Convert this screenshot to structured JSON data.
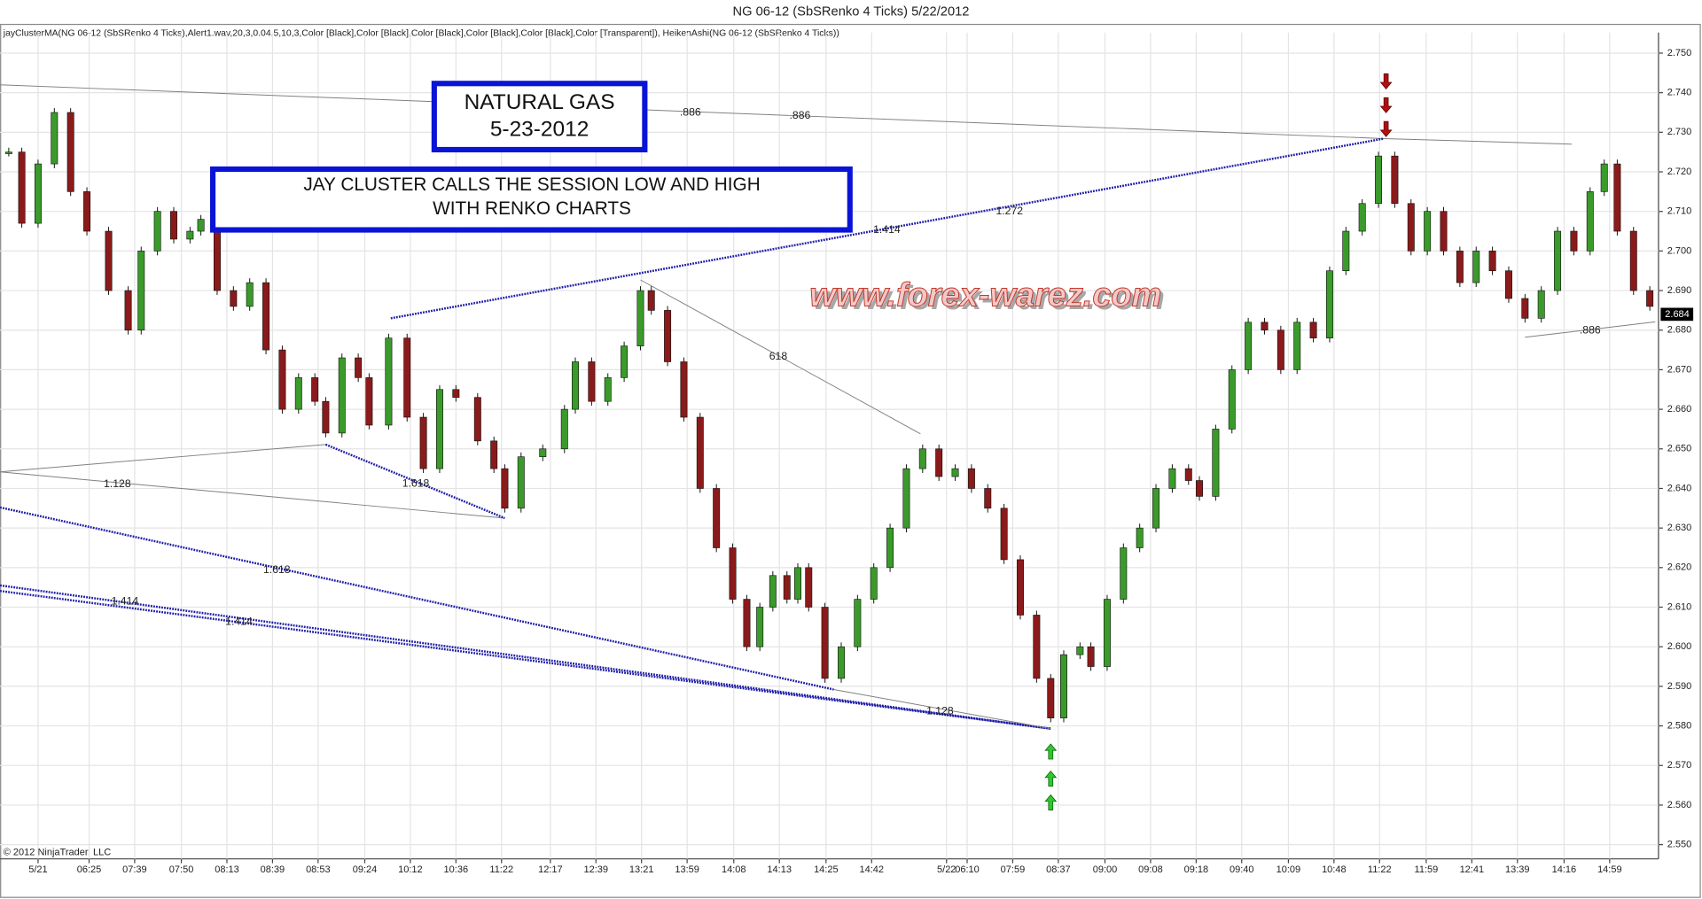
{
  "chart_data": {
    "type": "candlestick",
    "title": "NG 06-12 (SbSRenko 4 Ticks)  5/22/2012",
    "subtitle": "jayClusterMA(NG 06-12 (SbSRenko 4 Ticks),Alert1.wav,20,3,0.04,5,10,3,Color [Black],Color [Black],Color [Black],Color [Black],Color [Black],Color [Transparent]), HeikenAshi(NG 06-12 (SbSRenko 4 Ticks))",
    "footer": "© 2012 NinjaTrader, LLC",
    "watermark": "www.forex-warez.com",
    "text_boxes": [
      {
        "lines": [
          "NATURAL GAS",
          "5-23-2012"
        ]
      },
      {
        "lines": [
          "JAY CLUSTER CALLS THE SESSION LOW AND HIGH",
          "WITH RENKO CHARTS"
        ]
      }
    ],
    "up_color": "#3a9a2a",
    "down_color": "#8b1a1a",
    "grid": true,
    "xlim": [
      0,
      152.8
    ],
    "ylim": [
      2.5464,
      2.7552
    ],
    "xticks": [
      {
        "value": 3.5,
        "label": "5/21"
      },
      {
        "value": 8.2,
        "label": "06:25"
      },
      {
        "value": 12.4,
        "label": "07:39"
      },
      {
        "value": 16.7,
        "label": "07:50"
      },
      {
        "value": 20.9,
        "label": "08:13"
      },
      {
        "value": 25.1,
        "label": "08:39"
      },
      {
        "value": 29.3,
        "label": "08:53"
      },
      {
        "value": 33.6,
        "label": "09:24"
      },
      {
        "value": 37.8,
        "label": "10:12"
      },
      {
        "value": 42,
        "label": "10:36"
      },
      {
        "value": 46.2,
        "label": "11:22"
      },
      {
        "value": 50.7,
        "label": "12:17"
      },
      {
        "value": 54.9,
        "label": "12:39"
      },
      {
        "value": 59.1,
        "label": "13:21"
      },
      {
        "value": 63.3,
        "label": "13:59"
      },
      {
        "value": 67.6,
        "label": "14:08"
      },
      {
        "value": 71.8,
        "label": "14:13"
      },
      {
        "value": 76.1,
        "label": "14:25"
      },
      {
        "value": 80.3,
        "label": "14:42"
      },
      {
        "value": 87.2,
        "label": "5/22"
      },
      {
        "value": 89.1,
        "label": "06:10"
      },
      {
        "value": 93.3,
        "label": "07:59"
      },
      {
        "value": 97.5,
        "label": "08:37"
      },
      {
        "value": 101.8,
        "label": "09:00"
      },
      {
        "value": 106,
        "label": "09:08"
      },
      {
        "value": 110.2,
        "label": "09:18"
      },
      {
        "value": 114.4,
        "label": "09:40"
      },
      {
        "value": 118.7,
        "label": "10:09"
      },
      {
        "value": 122.9,
        "label": "10:48"
      },
      {
        "value": 127.1,
        "label": "11:22"
      },
      {
        "value": 131.4,
        "label": "11:59"
      },
      {
        "value": 135.6,
        "label": "12:41"
      },
      {
        "value": 139.8,
        "label": "13:39"
      },
      {
        "value": 144.1,
        "label": "14:16"
      },
      {
        "value": 148.3,
        "label": "14:59"
      }
    ],
    "yticks": [
      {
        "value": 2.55,
        "label": "2.550"
      },
      {
        "value": 2.56,
        "label": "2.560"
      },
      {
        "value": 2.57,
        "label": "2.570"
      },
      {
        "value": 2.58,
        "label": "2.580"
      },
      {
        "value": 2.59,
        "label": "2.590"
      },
      {
        "value": 2.6,
        "label": "2.600"
      },
      {
        "value": 2.61,
        "label": "2.610"
      },
      {
        "value": 2.62,
        "label": "2.620"
      },
      {
        "value": 2.63,
        "label": "2.630"
      },
      {
        "value": 2.64,
        "label": "2.640"
      },
      {
        "value": 2.65,
        "label": "2.650"
      },
      {
        "value": 2.66,
        "label": "2.660"
      },
      {
        "value": 2.67,
        "label": "2.670"
      },
      {
        "value": 2.68,
        "label": "2.680"
      },
      {
        "value": 2.69,
        "label": "2.690"
      },
      {
        "value": 2.7,
        "label": "2.700"
      },
      {
        "value": 2.71,
        "label": "2.710"
      },
      {
        "value": 2.72,
        "label": "2.720"
      },
      {
        "value": 2.73,
        "label": "2.730"
      },
      {
        "value": 2.74,
        "label": "2.740"
      },
      {
        "value": 2.75,
        "label": "2.750"
      }
    ],
    "current_price": {
      "value": 2.684,
      "label": "2.684"
    },
    "x": [
      0.8,
      2,
      3.5,
      5,
      6.5,
      8,
      10,
      11.8,
      13,
      14.5,
      16,
      17.5,
      18.5,
      20,
      21.5,
      23,
      24.5,
      26,
      27.5,
      29,
      30,
      31.5,
      33,
      34,
      35.8,
      37.5,
      39,
      40.5,
      42,
      44,
      45.5,
      46.5,
      48,
      50,
      52,
      53,
      54.5,
      56,
      57.5,
      59,
      60,
      61.5,
      63,
      64.5,
      66,
      67.5,
      68.8,
      70,
      71.2,
      72.5,
      73.5,
      74.5,
      76,
      77.5,
      79,
      80.5,
      82,
      83.5,
      85,
      86.5,
      88,
      89.5,
      91,
      92.5,
      94,
      95.5,
      96.8,
      98,
      99.5,
      100.5,
      102,
      103.5,
      105,
      106.5,
      108,
      109.5,
      110.5,
      112,
      113.5,
      115,
      116.5,
      118,
      119.5,
      121,
      122.5,
      124,
      125.5,
      127,
      128.5,
      130,
      131.5,
      133,
      134.5,
      136,
      137.5,
      139,
      140.5,
      142,
      143.5,
      145,
      146.5,
      147.8,
      149,
      150.5,
      152
    ],
    "values": [
      2.725,
      2.707,
      2.722,
      2.735,
      2.715,
      2.705,
      2.69,
      2.68,
      2.7,
      2.71,
      2.703,
      2.705,
      2.708,
      2.69,
      2.686,
      2.692,
      2.675,
      2.66,
      2.668,
      2.662,
      2.654,
      2.673,
      2.668,
      2.656,
      2.678,
      2.658,
      2.645,
      2.665,
      2.663,
      2.652,
      2.645,
      2.635,
      2.648,
      2.65,
      2.66,
      2.672,
      2.662,
      2.668,
      2.676,
      2.69,
      2.685,
      2.672,
      2.658,
      2.64,
      2.625,
      2.612,
      2.6,
      2.61,
      2.618,
      2.612,
      2.62,
      2.61,
      2.592,
      2.6,
      2.612,
      2.62,
      2.63,
      2.645,
      2.65,
      2.643,
      2.645,
      2.64,
      2.635,
      2.622,
      2.608,
      2.592,
      2.582,
      2.598,
      2.6,
      2.595,
      2.612,
      2.625,
      2.63,
      2.64,
      2.645,
      2.642,
      2.638,
      2.655,
      2.67,
      2.682,
      2.68,
      2.67,
      2.682,
      2.678,
      2.695,
      2.705,
      2.712,
      2.724,
      2.712,
      2.7,
      2.71,
      2.7,
      2.692,
      2.7,
      2.695,
      2.688,
      2.683,
      2.69,
      2.705,
      2.7,
      2.715,
      2.722,
      2.705,
      2.69,
      2.686
    ],
    "lines": [
      {
        "from": [
          0,
          2.742
        ],
        "to": [
          127.5,
          2.7284
        ],
        "style": "solid"
      },
      {
        "from": [
          127.5,
          2.7284
        ],
        "to": [
          144.8,
          2.727
        ],
        "style": "solid"
      },
      {
        "from": [
          36,
          2.683
        ],
        "to": [
          127.5,
          2.7284
        ],
        "style": "dotted"
      },
      {
        "from": [
          59,
          2.6927
        ],
        "to": [
          84.8,
          2.6538
        ],
        "style": "solid"
      },
      {
        "from": [
          0,
          2.6442
        ],
        "to": [
          30,
          2.6511
        ],
        "style": "solid"
      },
      {
        "from": [
          0,
          2.6442
        ],
        "to": [
          46.5,
          2.6325
        ],
        "style": "solid"
      },
      {
        "from": [
          30,
          2.6511
        ],
        "to": [
          46.5,
          2.6325
        ],
        "style": "dotted"
      },
      {
        "from": [
          0,
          2.6352
        ],
        "to": [
          76.8,
          2.5892
        ],
        "style": "dotted"
      },
      {
        "from": [
          0,
          2.6155
        ],
        "to": [
          96.8,
          2.5793
        ],
        "style": "dotted"
      },
      {
        "from": [
          0,
          2.6141
        ],
        "to": [
          96.8,
          2.5793
        ],
        "style": "dotted"
      },
      {
        "from": [
          76.8,
          2.5892
        ],
        "to": [
          96.8,
          2.5793
        ],
        "style": "solid"
      },
      {
        "from": [
          140.5,
          2.6782
        ],
        "to": [
          152.5,
          2.6821
        ],
        "style": "solid"
      }
    ],
    "fib_labels": [
      {
        "text": ".886",
        "at": [
          63.6,
          2.7349
        ]
      },
      {
        "text": ".886",
        "at": [
          73.7,
          2.7341
        ]
      },
      {
        "text": "1.414",
        "at": [
          81.7,
          2.7053
        ]
      },
      {
        "text": "1.272",
        "at": [
          93,
          2.71
        ]
      },
      {
        "text": "618",
        "at": [
          71.7,
          2.6733
        ]
      },
      {
        "text": "1.618",
        "at": [
          38.3,
          2.6412
        ]
      },
      {
        "text": "1.128",
        "at": [
          10.8,
          2.641
        ]
      },
      {
        "text": "1.618",
        "at": [
          25.5,
          2.6193
        ]
      },
      {
        "text": "1.414",
        "at": [
          11.5,
          2.6114
        ]
      },
      {
        "text": "1.414",
        "at": [
          22,
          2.6062
        ]
      },
      {
        "text": "1.128",
        "at": [
          86.6,
          2.5837
        ]
      },
      {
        "text": ".886",
        "at": [
          146.5,
          2.6799
        ]
      }
    ]
  }
}
